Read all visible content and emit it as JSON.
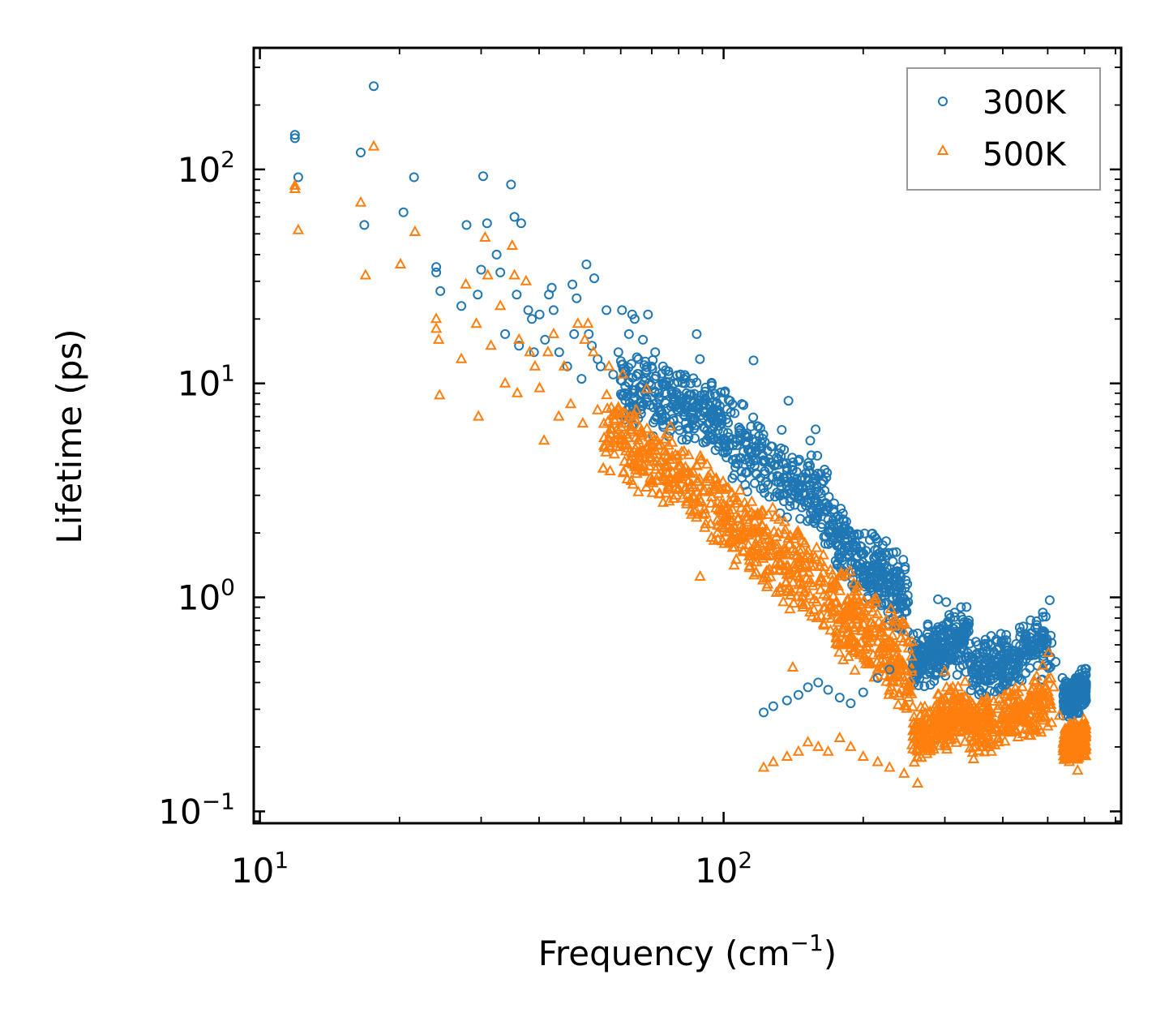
{
  "chart_data": {
    "type": "scatter",
    "title": "",
    "xscale": "log",
    "yscale": "log",
    "xlim": [
      9.7,
      720
    ],
    "ylim": [
      0.088,
      370
    ],
    "xlabel_base": "Frequency (cm",
    "xlabel_exp": "−1",
    "xlabel_close": ")",
    "ylabel": "Lifetime (ps)",
    "x_ticks": [
      {
        "value": 10,
        "base": "10",
        "exp": "1"
      },
      {
        "value": 100,
        "base": "10",
        "exp": "2"
      }
    ],
    "y_ticks": [
      {
        "value": 0.1,
        "base": "10",
        "exp": "−1"
      },
      {
        "value": 1,
        "base": "10",
        "exp": "0"
      },
      {
        "value": 10,
        "base": "10",
        "exp": "1"
      },
      {
        "value": 100,
        "base": "10",
        "exp": "2"
      }
    ],
    "legend_position": "top-right",
    "series": [
      {
        "name": "300K",
        "marker": "circle",
        "color": "#1f77b4",
        "points": [
          [
            11.9,
            145
          ],
          [
            11.9,
            140
          ],
          [
            12.1,
            92
          ],
          [
            16.5,
            120
          ],
          [
            17.6,
            245
          ],
          [
            16.8,
            55
          ],
          [
            20.4,
            63
          ],
          [
            21.5,
            92
          ],
          [
            24.0,
            35
          ],
          [
            24.0,
            33
          ],
          [
            24.5,
            27
          ],
          [
            27.2,
            23
          ],
          [
            27.9,
            55
          ],
          [
            29.5,
            26
          ],
          [
            30.0,
            34
          ],
          [
            30.3,
            93
          ],
          [
            30.9,
            56
          ],
          [
            32.4,
            40
          ],
          [
            33.0,
            33
          ],
          [
            33.8,
            17
          ],
          [
            34.8,
            85
          ],
          [
            35.4,
            60
          ],
          [
            35.8,
            26
          ],
          [
            36.2,
            15
          ],
          [
            36.6,
            56
          ],
          [
            37.9,
            22
          ],
          [
            38.6,
            20
          ],
          [
            39.0,
            14
          ],
          [
            40.1,
            21
          ],
          [
            41.2,
            16
          ],
          [
            42.0,
            26
          ],
          [
            42.6,
            28
          ],
          [
            43.0,
            22
          ],
          [
            44.2,
            14
          ],
          [
            46.0,
            12
          ],
          [
            47.2,
            29
          ],
          [
            47.6,
            17
          ],
          [
            48.2,
            25
          ],
          [
            49.4,
            10.5
          ],
          [
            50.6,
            36
          ],
          [
            51.2,
            17
          ],
          [
            52.0,
            15
          ],
          [
            52.6,
            31
          ],
          [
            53.5,
            13
          ],
          [
            54.3,
            12
          ],
          [
            55.9,
            22
          ],
          [
            57.8,
            11
          ],
          [
            59.3,
            14
          ],
          [
            60.4,
            22
          ],
          [
            61.2,
            9
          ],
          [
            62.5,
            17
          ],
          [
            63.5,
            21
          ],
          [
            64.3,
            20
          ],
          [
            65.5,
            13
          ],
          [
            67.0,
            16
          ],
          [
            68.7,
            21
          ],
          [
            69.9,
            12
          ],
          [
            71.2,
            14
          ],
          [
            74.0,
            12
          ],
          [
            76.1,
            11
          ],
          [
            78.3,
            10
          ],
          [
            80.8,
            11
          ],
          [
            83.2,
            9
          ],
          [
            85.0,
            10
          ],
          [
            87.5,
            17
          ],
          [
            88.9,
            13
          ],
          [
            91.3,
            8.5
          ],
          [
            94.5,
            7.5
          ],
          [
            96.8,
            8.1
          ],
          [
            99.0,
            6.5
          ],
          [
            101.4,
            6.8
          ],
          [
            104.5,
            5.5
          ],
          [
            108.2,
            6.0
          ],
          [
            112.0,
            5.2
          ],
          [
            116.0,
            12.8
          ],
          [
            118.0,
            4.8
          ],
          [
            122.0,
            4.3
          ],
          [
            125.4,
            4.0
          ],
          [
            130.5,
            3.7
          ],
          [
            134.6,
            4.2
          ],
          [
            138.0,
            8.3
          ],
          [
            141.0,
            3.3
          ],
          [
            145.2,
            3.0
          ],
          [
            149.0,
            2.8
          ],
          [
            153.8,
            5.4
          ],
          [
            157.9,
            6.1
          ],
          [
            163.0,
            2.2
          ],
          [
            168.5,
            2.0
          ],
          [
            174.3,
            1.8
          ],
          [
            179.0,
            2.6
          ],
          [
            184.5,
            1.7
          ],
          [
            189.2,
            1.9
          ],
          [
            195.0,
            1.4
          ],
          [
            200.5,
            1.6
          ],
          [
            206.8,
            1.3
          ],
          [
            212.0,
            1.5
          ],
          [
            218.5,
            1.2
          ],
          [
            224.0,
            1.1
          ],
          [
            231.0,
            1.0
          ],
          [
            237.0,
            1.2
          ],
          [
            244.0,
            1.5
          ],
          [
            250.0,
            0.95
          ],
          [
            122.0,
            0.29
          ],
          [
            128.0,
            0.31
          ],
          [
            137.0,
            0.33
          ],
          [
            145.0,
            0.35
          ],
          [
            152.0,
            0.38
          ],
          [
            160.0,
            0.4
          ],
          [
            168.0,
            0.37
          ],
          [
            178.0,
            0.34
          ],
          [
            188.0,
            0.32
          ],
          [
            200.0,
            0.36
          ],
          [
            215.0,
            0.42
          ],
          [
            228.0,
            0.46
          ],
          [
            256.0,
            0.48
          ],
          [
            268.0,
            0.52
          ],
          [
            278.0,
            0.45
          ],
          [
            290.0,
            0.98
          ],
          [
            302.0,
            0.95
          ],
          [
            315.0,
            0.85
          ],
          [
            325.0,
            0.9
          ],
          [
            338.0,
            0.78
          ],
          [
            350.0,
            0.62
          ],
          [
            362.0,
            0.55
          ],
          [
            378.0,
            0.48
          ],
          [
            392.0,
            0.43
          ],
          [
            405.0,
            0.39
          ],
          [
            420.0,
            0.45
          ],
          [
            435.0,
            0.52
          ],
          [
            452.0,
            0.6
          ],
          [
            470.0,
            0.72
          ],
          [
            488.0,
            0.85
          ],
          [
            505.0,
            0.97
          ],
          [
            520.0,
            0.5
          ],
          [
            538.0,
            0.42
          ],
          [
            560.0,
            0.31
          ],
          [
            578.0,
            0.35
          ],
          [
            592.0,
            0.46
          ],
          [
            604.0,
            0.4
          ]
        ]
      },
      {
        "name": "500K",
        "marker": "triangle",
        "color": "#ff7f0e",
        "points": [
          [
            11.9,
            84
          ],
          [
            11.9,
            81
          ],
          [
            12.1,
            52
          ],
          [
            16.5,
            70
          ],
          [
            16.9,
            32
          ],
          [
            17.6,
            128
          ],
          [
            20.1,
            36
          ],
          [
            21.6,
            51
          ],
          [
            24.0,
            20
          ],
          [
            24.0,
            18
          ],
          [
            24.3,
            16
          ],
          [
            24.4,
            8.8
          ],
          [
            27.2,
            13
          ],
          [
            27.8,
            29
          ],
          [
            29.3,
            19
          ],
          [
            29.6,
            7
          ],
          [
            30.6,
            48
          ],
          [
            31.0,
            32
          ],
          [
            31.5,
            15
          ],
          [
            33.0,
            23
          ],
          [
            33.8,
            10
          ],
          [
            35.0,
            44
          ],
          [
            35.4,
            32
          ],
          [
            35.9,
            9.0
          ],
          [
            36.2,
            16
          ],
          [
            37.5,
            30
          ],
          [
            38.2,
            14
          ],
          [
            39.2,
            12
          ],
          [
            40.1,
            9.5
          ],
          [
            41.0,
            5.4
          ],
          [
            41.8,
            14
          ],
          [
            43.0,
            17
          ],
          [
            44.1,
            7.0
          ],
          [
            45.3,
            12
          ],
          [
            46.8,
            8.0
          ],
          [
            48.5,
            19
          ],
          [
            49.7,
            6.5
          ],
          [
            50.2,
            16
          ],
          [
            51.0,
            19
          ],
          [
            52.4,
            14
          ],
          [
            53.5,
            7.5
          ],
          [
            55.0,
            4.0
          ],
          [
            56.6,
            12
          ],
          [
            58.0,
            6.8
          ],
          [
            59.2,
            7.5
          ],
          [
            60.6,
            11
          ],
          [
            61.8,
            5.2
          ],
          [
            63.2,
            3.5
          ],
          [
            64.8,
            7.5
          ],
          [
            66.5,
            6.0
          ],
          [
            68.2,
            9.4
          ],
          [
            70.0,
            5.0
          ],
          [
            72.3,
            3.7
          ],
          [
            74.5,
            4.8
          ],
          [
            76.8,
            6.3
          ],
          [
            79.0,
            3.0
          ],
          [
            81.5,
            2.9
          ],
          [
            84.0,
            3.5
          ],
          [
            86.7,
            2.5
          ],
          [
            89.0,
            1.25
          ],
          [
            91.5,
            2.2
          ],
          [
            94.2,
            1.9
          ],
          [
            97.0,
            2.0
          ],
          [
            100.0,
            2.1
          ],
          [
            103.0,
            1.8
          ],
          [
            106.5,
            1.5
          ],
          [
            110.0,
            1.65
          ],
          [
            113.8,
            1.4
          ],
          [
            117.5,
            1.3
          ],
          [
            121.5,
            1.2
          ],
          [
            125.6,
            1.35
          ],
          [
            130.0,
            1.05
          ],
          [
            134.5,
            0.95
          ],
          [
            139.0,
            0.88
          ],
          [
            143.8,
            1.0
          ],
          [
            148.5,
            0.92
          ],
          [
            153.6,
            0.85
          ],
          [
            158.9,
            0.8
          ],
          [
            164.3,
            0.75
          ],
          [
            170.0,
            0.7
          ],
          [
            175.8,
            0.68
          ],
          [
            181.9,
            0.62
          ],
          [
            188.0,
            0.58
          ],
          [
            194.5,
            0.55
          ],
          [
            201.0,
            0.52
          ],
          [
            208.0,
            0.49
          ],
          [
            215.0,
            0.46
          ],
          [
            222.5,
            0.43
          ],
          [
            230.0,
            0.4
          ],
          [
            238.0,
            0.4
          ],
          [
            246.0,
            0.75
          ],
          [
            255.0,
            0.62
          ],
          [
            141.0,
            0.47
          ],
          [
            122.0,
            0.16
          ],
          [
            128.0,
            0.17
          ],
          [
            137.0,
            0.18
          ],
          [
            145.0,
            0.19
          ],
          [
            152.0,
            0.21
          ],
          [
            160.0,
            0.2
          ],
          [
            168.0,
            0.19
          ],
          [
            178.0,
            0.22
          ],
          [
            188.0,
            0.2
          ],
          [
            200.0,
            0.18
          ],
          [
            215.0,
            0.17
          ],
          [
            228.0,
            0.16
          ],
          [
            245.0,
            0.15
          ],
          [
            262.0,
            0.135
          ],
          [
            275.0,
            0.2
          ],
          [
            288.0,
            0.3
          ],
          [
            300.0,
            0.45
          ],
          [
            312.0,
            0.38
          ],
          [
            325.0,
            0.28
          ],
          [
            338.0,
            0.25
          ],
          [
            350.0,
            0.3
          ],
          [
            362.0,
            0.22
          ],
          [
            378.0,
            0.19
          ],
          [
            392.0,
            0.21
          ],
          [
            405.0,
            0.24
          ],
          [
            420.0,
            0.27
          ],
          [
            435.0,
            0.3
          ],
          [
            452.0,
            0.33
          ],
          [
            470.0,
            0.4
          ],
          [
            488.0,
            0.48
          ],
          [
            502.0,
            0.55
          ],
          [
            515.0,
            0.38
          ],
          [
            530.0,
            0.28
          ],
          [
            548.0,
            0.2
          ],
          [
            565.0,
            0.18
          ],
          [
            580.0,
            0.155
          ],
          [
            592.0,
            0.22
          ],
          [
            602.0,
            0.25
          ]
        ]
      }
    ],
    "clouds": [
      {
        "name": "300K",
        "color": "#1f77b4",
        "segments": [
          {
            "x0": 60,
            "x1": 100,
            "yc0": 9.5,
            "yc1": 6.8,
            "spread": 0.18
          },
          {
            "x0": 100,
            "x1": 170,
            "yc0": 6.0,
            "yc1": 2.6,
            "spread": 0.22
          },
          {
            "x0": 170,
            "x1": 250,
            "yc0": 2.0,
            "yc1": 0.95,
            "spread": 0.2
          },
          {
            "x0": 255,
            "x1": 340,
            "yc0": 0.5,
            "yc1": 0.65,
            "spread": 0.16
          },
          {
            "x0": 340,
            "x1": 510,
            "yc0": 0.45,
            "yc1": 0.6,
            "spread": 0.16
          },
          {
            "x0": 540,
            "x1": 605,
            "yc0": 0.32,
            "yc1": 0.38,
            "spread": 0.1
          }
        ]
      },
      {
        "name": "500K",
        "color": "#ff7f0e",
        "segments": [
          {
            "x0": 55,
            "x1": 100,
            "yc0": 6.0,
            "yc1": 2.6,
            "spread": 0.2
          },
          {
            "x0": 100,
            "x1": 170,
            "yc0": 2.4,
            "yc1": 1.05,
            "spread": 0.22
          },
          {
            "x0": 170,
            "x1": 255,
            "yc0": 0.95,
            "yc1": 0.45,
            "spread": 0.24
          },
          {
            "x0": 255,
            "x1": 340,
            "yc0": 0.22,
            "yc1": 0.3,
            "spread": 0.16
          },
          {
            "x0": 340,
            "x1": 510,
            "yc0": 0.24,
            "yc1": 0.33,
            "spread": 0.16
          },
          {
            "x0": 540,
            "x1": 605,
            "yc0": 0.2,
            "yc1": 0.22,
            "spread": 0.1
          }
        ]
      }
    ]
  }
}
